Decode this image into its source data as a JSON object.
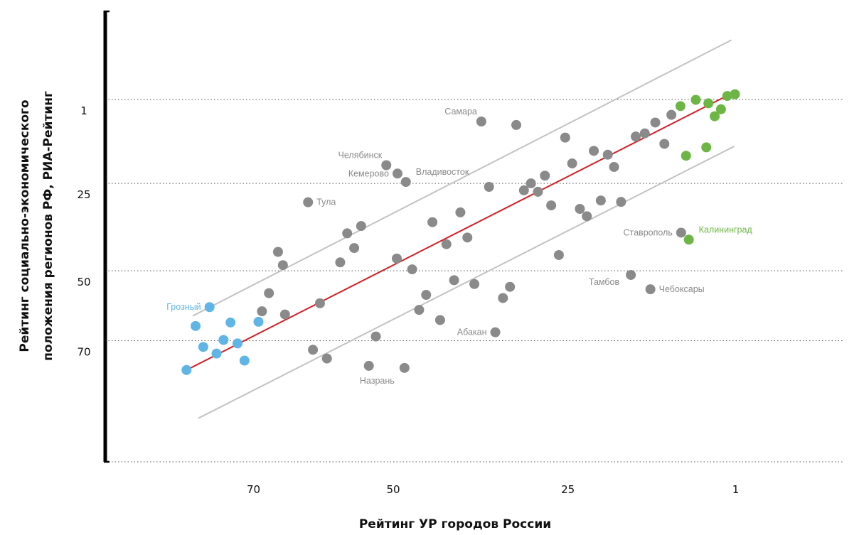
{
  "chart_data": {
    "type": "scatter",
    "xlabel": "Рейтинг УР городов России",
    "ylabel_lines": [
      "Рейтинг социально-экономического",
      "положения регионов РФ, РИА-Рейтинг"
    ],
    "x_axis": {
      "reversed": true,
      "ticks": [
        70,
        50,
        25,
        1
      ]
    },
    "y_axis": {
      "reversed": true,
      "ticks": [
        1,
        25,
        50,
        70
      ]
    },
    "grid": "dotted horizontal at y ticks",
    "colors": {
      "default": "#8a8a8a",
      "green": "#6db645",
      "blue": "#5fb6e6",
      "trend": "#d41f26",
      "band": "#c3c3c3",
      "label_gray": "#8a8a8a"
    },
    "trend_line": {
      "from": [
        79.6,
        78.4
      ],
      "to": [
        2.1,
        -0.2
      ]
    },
    "band_upper": {
      "from": [
        78.7,
        62.9
      ],
      "to": [
        1.6,
        -16.0
      ]
    },
    "band_lower": {
      "from": [
        77.9,
        92.2
      ],
      "to": [
        1.2,
        14.4
      ]
    },
    "points": [
      {
        "x": 79.6,
        "y": 78.4,
        "group": "blue"
      },
      {
        "x": 78.3,
        "y": 65.8,
        "group": "blue"
      },
      {
        "x": 77.2,
        "y": 71.8,
        "group": "blue"
      },
      {
        "x": 75.3,
        "y": 73.7,
        "group": "blue"
      },
      {
        "x": 74.3,
        "y": 69.8,
        "group": "blue"
      },
      {
        "x": 73.3,
        "y": 64.8,
        "group": "blue"
      },
      {
        "x": 72.3,
        "y": 70.8,
        "group": "blue"
      },
      {
        "x": 71.3,
        "y": 75.7,
        "group": "blue"
      },
      {
        "x": 69.3,
        "y": 64.6,
        "group": "blue"
      },
      {
        "x": 76.3,
        "y": 60.4,
        "group": "blue",
        "label": "Грозный",
        "label_pos": "left"
      },
      {
        "x": 68.8,
        "y": 61.6,
        "group": "gray"
      },
      {
        "x": 67.8,
        "y": 56.4,
        "group": "gray"
      },
      {
        "x": 65.5,
        "y": 62.5,
        "group": "gray"
      },
      {
        "x": 61.5,
        "y": 72.6,
        "group": "gray"
      },
      {
        "x": 60.5,
        "y": 59.3,
        "group": "gray"
      },
      {
        "x": 59.5,
        "y": 75.1,
        "group": "gray"
      },
      {
        "x": 57.6,
        "y": 47.6,
        "group": "gray"
      },
      {
        "x": 56.6,
        "y": 39.3,
        "group": "gray"
      },
      {
        "x": 55.6,
        "y": 43.5,
        "group": "gray"
      },
      {
        "x": 54.6,
        "y": 37.2,
        "group": "gray"
      },
      {
        "x": 53.5,
        "y": 77.2,
        "group": "gray"
      },
      {
        "x": 52.5,
        "y": 68.8,
        "group": "gray"
      },
      {
        "x": 49.5,
        "y": 46.5,
        "group": "gray"
      },
      {
        "x": 48.4,
        "y": 77.8,
        "group": "gray",
        "label": "Назрань",
        "label_pos": "below-left"
      },
      {
        "x": 47.3,
        "y": 49.6,
        "group": "gray"
      },
      {
        "x": 46.3,
        "y": 61.2,
        "group": "gray"
      },
      {
        "x": 45.3,
        "y": 56.9,
        "group": "gray"
      },
      {
        "x": 44.4,
        "y": 36.1,
        "group": "gray"
      },
      {
        "x": 43.3,
        "y": 64.1,
        "group": "gray"
      },
      {
        "x": 42.4,
        "y": 42.4,
        "group": "gray"
      },
      {
        "x": 41.3,
        "y": 52.7,
        "group": "gray"
      },
      {
        "x": 40.4,
        "y": 33.3,
        "group": "gray"
      },
      {
        "x": 39.4,
        "y": 40.5,
        "group": "gray"
      },
      {
        "x": 38.4,
        "y": 53.8,
        "group": "gray"
      },
      {
        "x": 37.4,
        "y": 7.3,
        "group": "gray",
        "label": "Самара",
        "label_pos": "upper-left"
      },
      {
        "x": 36.3,
        "y": 26.0,
        "group": "gray"
      },
      {
        "x": 35.4,
        "y": 67.6,
        "group": "gray",
        "label": "Абакан",
        "label_pos": "left"
      },
      {
        "x": 34.3,
        "y": 57.8,
        "group": "gray"
      },
      {
        "x": 33.3,
        "y": 54.6,
        "group": "gray"
      },
      {
        "x": 32.4,
        "y": 8.3,
        "group": "gray"
      },
      {
        "x": 31.3,
        "y": 27.0,
        "group": "gray"
      },
      {
        "x": 30.3,
        "y": 25.0,
        "group": "gray"
      },
      {
        "x": 29.3,
        "y": 27.4,
        "group": "gray"
      },
      {
        "x": 28.3,
        "y": 22.8,
        "group": "gray"
      },
      {
        "x": 27.4,
        "y": 31.3,
        "group": "gray"
      },
      {
        "x": 26.3,
        "y": 45.5,
        "group": "gray"
      },
      {
        "x": 25.4,
        "y": 11.9,
        "group": "gray"
      },
      {
        "x": 24.4,
        "y": 19.3,
        "group": "gray"
      },
      {
        "x": 23.3,
        "y": 32.3,
        "group": "gray"
      },
      {
        "x": 22.3,
        "y": 34.4,
        "group": "gray"
      },
      {
        "x": 21.3,
        "y": 15.7,
        "group": "gray"
      },
      {
        "x": 20.3,
        "y": 29.9,
        "group": "gray"
      },
      {
        "x": 19.3,
        "y": 16.8,
        "group": "gray"
      },
      {
        "x": 18.4,
        "y": 20.3,
        "group": "gray"
      },
      {
        "x": 17.4,
        "y": 30.3,
        "group": "gray"
      },
      {
        "x": 16.0,
        "y": 51.2,
        "group": "gray",
        "label": "Тамбов",
        "label_pos": "lower-left"
      },
      {
        "x": 15.3,
        "y": 11.6,
        "group": "gray"
      },
      {
        "x": 14.0,
        "y": 10.7,
        "group": "gray"
      },
      {
        "x": 13.2,
        "y": 55.3,
        "group": "gray",
        "label": "Чебоксары",
        "label_pos": "right"
      },
      {
        "x": 12.5,
        "y": 7.6,
        "group": "gray"
      },
      {
        "x": 11.2,
        "y": 13.7,
        "group": "gray"
      },
      {
        "x": 10.2,
        "y": 5.4,
        "group": "gray"
      },
      {
        "x": 8.8,
        "y": 39.1,
        "group": "gray",
        "label": "Ставрополь",
        "label_pos": "left"
      },
      {
        "x": 62.2,
        "y": 30.4,
        "group": "gray",
        "label": "Тула",
        "label_pos": "right"
      },
      {
        "x": 66.5,
        "y": 44.6,
        "group": "gray"
      },
      {
        "x": 65.8,
        "y": 48.4,
        "group": "gray"
      },
      {
        "x": 51.0,
        "y": 19.8,
        "group": "gray",
        "label": "Челябинск",
        "label_pos": "upper-left"
      },
      {
        "x": 49.4,
        "y": 22.2,
        "group": "gray",
        "label": "Кемерово",
        "label_pos": "left"
      },
      {
        "x": 48.2,
        "y": 24.6,
        "group": "gray",
        "label": "Владивосток",
        "label_pos": "upper-right"
      },
      {
        "x": 1.1,
        "y": -0.5,
        "group": "green"
      },
      {
        "x": 2.2,
        "y": 0.0,
        "group": "green"
      },
      {
        "x": 3.1,
        "y": 3.8,
        "group": "green"
      },
      {
        "x": 4.0,
        "y": 5.8,
        "group": "green"
      },
      {
        "x": 4.9,
        "y": 2.1,
        "group": "green"
      },
      {
        "x": 5.2,
        "y": 14.7,
        "group": "green"
      },
      {
        "x": 6.7,
        "y": 1.1,
        "group": "green"
      },
      {
        "x": 8.1,
        "y": 17.1,
        "group": "green"
      },
      {
        "x": 8.9,
        "y": 2.9,
        "group": "green"
      },
      {
        "x": 7.7,
        "y": 41.1,
        "group": "green",
        "label": "Калининград",
        "label_pos": "upper-right"
      }
    ]
  }
}
